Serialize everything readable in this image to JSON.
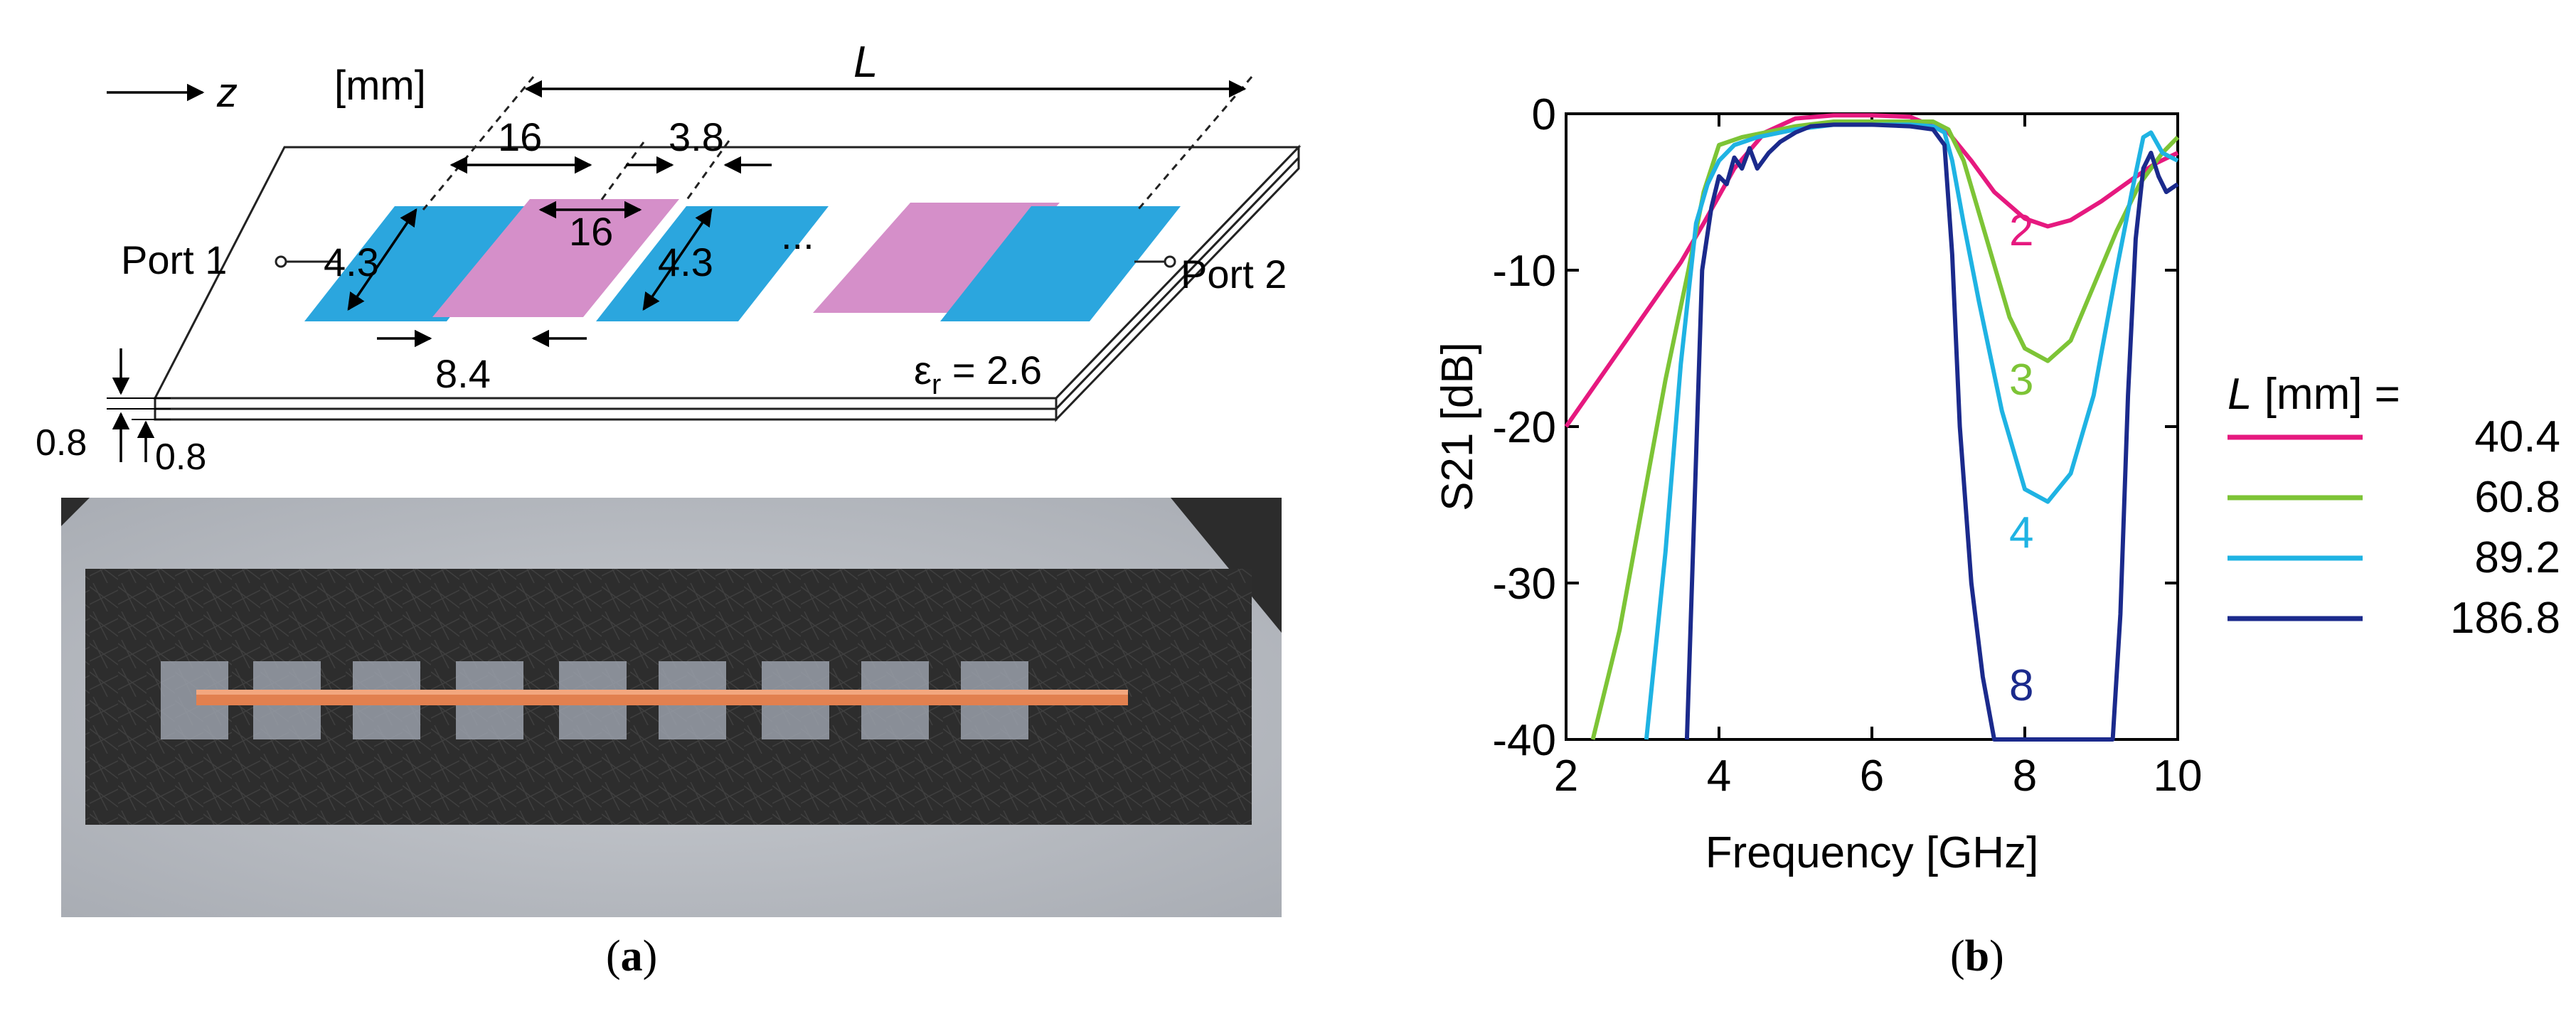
{
  "panel_a": {
    "caption": "a",
    "axis_symbol": "z",
    "unit_label": "[mm]",
    "length_label": "L",
    "dim_patch_width": "16",
    "dim_patch_width_2": "16",
    "dim_gap": "3.8",
    "dim_height_1": "4.3",
    "dim_height_2": "4.3",
    "dim_offset": "8.4",
    "ellipsis": "...",
    "port1": "Port 1",
    "port2": "Port 2",
    "permittivity_symbol": "ε",
    "permittivity_sub": "r",
    "permittivity_value": " = 2.6",
    "thickness_1": "0.8",
    "thickness_2": "0.8",
    "colors": {
      "blue_patch": "#2ba6de",
      "pink_patch": "#d58fc9"
    }
  },
  "panel_b": {
    "caption": "b",
    "legend_title_italic": "L",
    "legend_title_rest": " [mm] =",
    "curve_labels": [
      "2",
      "3",
      "4",
      "8"
    ]
  },
  "chart_data": {
    "type": "line",
    "title": "",
    "xlabel": "Frequency [GHz]",
    "ylabel": "S21 [dB]",
    "xlim": [
      2,
      10
    ],
    "ylim": [
      -40,
      0
    ],
    "xticks": [
      2,
      4,
      6,
      8,
      10
    ],
    "yticks": [
      0,
      -10,
      -20,
      -30,
      -40
    ],
    "grid": false,
    "legend_placement": "right",
    "series": [
      {
        "name": "40.4",
        "color": "#e6197f",
        "x": [
          2.0,
          2.5,
          3.0,
          3.5,
          3.8,
          4.2,
          4.6,
          5.0,
          5.5,
          6.0,
          6.5,
          7.0,
          7.3,
          7.6,
          8.0,
          8.3,
          8.6,
          9.0,
          9.4,
          9.7,
          10.0
        ],
        "y": [
          -20,
          -16.5,
          -13,
          -9.5,
          -7,
          -3.5,
          -1.2,
          -0.3,
          -0.1,
          -0.1,
          -0.2,
          -1.2,
          -3,
          -5,
          -6.7,
          -7.2,
          -6.8,
          -5.6,
          -4.2,
          -3.2,
          -2.5
        ]
      },
      {
        "name": "60.8",
        "color": "#7dc436",
        "x": [
          2.35,
          2.7,
          3.0,
          3.3,
          3.6,
          3.8,
          4.0,
          4.3,
          4.6,
          5.0,
          5.5,
          6.0,
          6.5,
          6.8,
          7.0,
          7.2,
          7.5,
          7.8,
          8.0,
          8.3,
          8.6,
          8.9,
          9.2,
          9.5,
          9.8,
          10.0
        ],
        "y": [
          -40,
          -33,
          -25,
          -17,
          -10,
          -5,
          -2,
          -1.5,
          -1.2,
          -0.8,
          -0.5,
          -0.5,
          -0.5,
          -0.5,
          -1,
          -3,
          -8,
          -13,
          -15,
          -15.8,
          -14.5,
          -11,
          -7.5,
          -4.5,
          -2.5,
          -1.5
        ]
      },
      {
        "name": "89.2",
        "color": "#1fb3e3",
        "x": [
          3.05,
          3.3,
          3.5,
          3.7,
          3.85,
          4.0,
          4.2,
          4.5,
          4.8,
          5.0,
          5.5,
          6.0,
          6.5,
          6.8,
          6.95,
          7.05,
          7.2,
          7.4,
          7.7,
          8.0,
          8.3,
          8.6,
          8.9,
          9.2,
          9.4,
          9.55,
          9.65,
          9.8,
          10.0
        ],
        "y": [
          -40,
          -28,
          -16,
          -7,
          -4.5,
          -3,
          -2,
          -1.5,
          -1.2,
          -1,
          -0.7,
          -0.7,
          -0.7,
          -0.8,
          -1.2,
          -3,
          -7,
          -12,
          -19,
          -24,
          -24.8,
          -23,
          -18,
          -10,
          -5,
          -1.5,
          -1.2,
          -2.5,
          -3
        ]
      },
      {
        "name": "186.8",
        "color": "#1b2a8c",
        "x": [
          3.58,
          3.68,
          3.78,
          3.9,
          4.0,
          4.1,
          4.2,
          4.3,
          4.4,
          4.5,
          4.65,
          4.8,
          5.0,
          5.2,
          5.5,
          6.0,
          6.5,
          6.8,
          6.95,
          7.05,
          7.15,
          7.3,
          7.45,
          7.6,
          9.15,
          9.25,
          9.35,
          9.45,
          9.55,
          9.65,
          9.75,
          9.85,
          10.0
        ],
        "y": [
          -40,
          -25,
          -10,
          -6,
          -4,
          -4.5,
          -2.8,
          -3.5,
          -2.2,
          -3.5,
          -2.5,
          -1.8,
          -1.2,
          -0.8,
          -0.7,
          -0.7,
          -0.8,
          -1,
          -2,
          -9,
          -20,
          -30,
          -36,
          -40,
          -40,
          -32,
          -18,
          -8,
          -3.5,
          -2.5,
          -4,
          -5,
          -4.5
        ]
      }
    ]
  }
}
